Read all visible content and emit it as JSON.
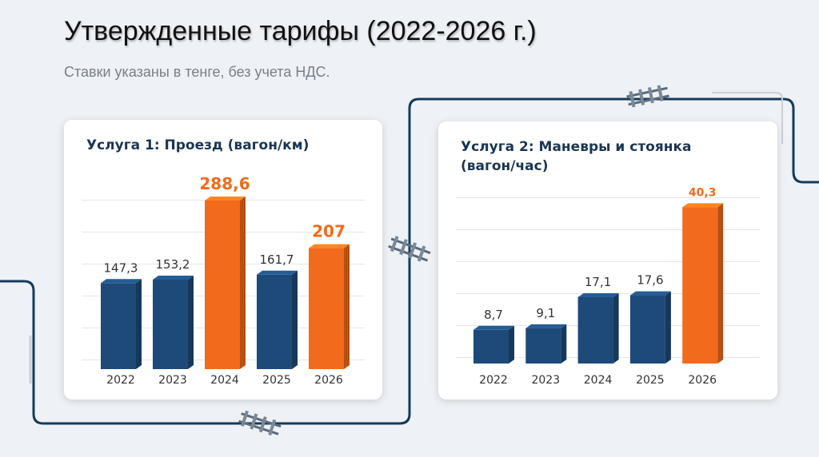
{
  "title": "Утвержденные тарифы (2022-2026 г.)",
  "subtitle": "Ставки указаны в тенге, без учета НДС.",
  "chart_data": [
    {
      "type": "bar",
      "title": "Услуга 1: Проезд (вагон/км)",
      "categories": [
        "2022",
        "2023",
        "2024",
        "2025",
        "2026"
      ],
      "values": [
        147.3,
        153.2,
        288.6,
        161.7,
        207
      ],
      "value_labels": [
        "147,3",
        "153,2",
        "288,6",
        "161,7",
        "207"
      ],
      "color": "#1d4a78",
      "colors": [
        "#1d4a78",
        "#1d4a78",
        "#f26a1b",
        "#1d4a78",
        "#f26a1b"
      ],
      "ylim": [
        0,
        320
      ],
      "grid": true
    },
    {
      "type": "bar",
      "title": "Услуга 2: Маневры и стоянка (вагон/час)",
      "categories": [
        "2022",
        "2023",
        "2024",
        "2025",
        "2026"
      ],
      "values": [
        8.7,
        9.1,
        17.1,
        17.6,
        40.3
      ],
      "value_labels": [
        "8,7",
        "9,1",
        "17,1",
        "17,6",
        "40,3"
      ],
      "color": "#1d4a78",
      "colors": [
        "#1d4a78",
        "#1d4a78",
        "#1d4a78",
        "#1d4a78",
        "#f26a1b"
      ],
      "ylim": [
        0,
        48
      ],
      "grid": true
    }
  ]
}
